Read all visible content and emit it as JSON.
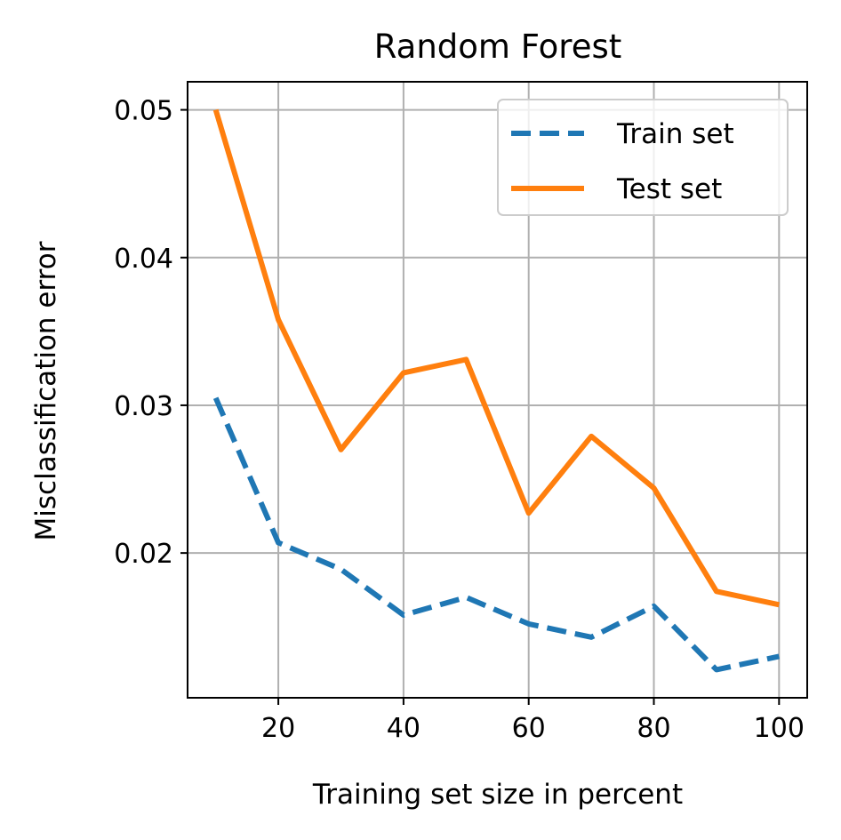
{
  "chart_data": {
    "type": "line",
    "title": "Random Forest",
    "xlabel": "Training set size in percent",
    "ylabel": "Misclassification error",
    "x": [
      10,
      20,
      30,
      40,
      50,
      60,
      70,
      80,
      90,
      100
    ],
    "series": [
      {
        "name": "Train set",
        "values": [
          0.0305,
          0.0207,
          0.0189,
          0.0158,
          0.017,
          0.0152,
          0.0143,
          0.0164,
          0.0121,
          0.013
        ],
        "color": "#1f77b4",
        "style": "dashed"
      },
      {
        "name": "Test set",
        "values": [
          0.05,
          0.0358,
          0.027,
          0.0322,
          0.0331,
          0.0227,
          0.0279,
          0.0244,
          0.0174,
          0.0165
        ],
        "color": "#ff7f0e",
        "style": "solid"
      }
    ],
    "xlim": [
      5.5,
      104.5
    ],
    "ylim": [
      0.0102,
      0.0519
    ],
    "xticks": [
      20,
      40,
      60,
      80,
      100
    ],
    "xtick_labels": [
      "20",
      "40",
      "60",
      "80",
      "100"
    ],
    "yticks": [
      0.02,
      0.03,
      0.04,
      0.05
    ],
    "ytick_labels": [
      "0.02",
      "0.03",
      "0.04",
      "0.05"
    ],
    "grid": true,
    "legend_position": "top-right"
  }
}
